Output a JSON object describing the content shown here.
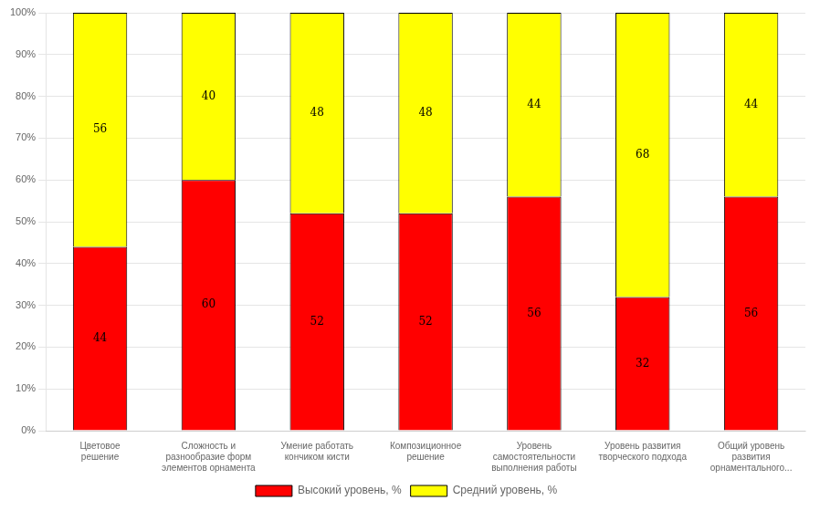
{
  "chart_data": {
    "type": "bar",
    "stacked": true,
    "categories": [
      "Цветовое\nрешение",
      "Сложность и\nразнообразие форм\nэлементов орнамента",
      "Умение работать\nкончиком кисти",
      "Композиционное\nрешение",
      "Уровень\nсамостоятельности\nвыполнения работы",
      "Уровень развития\nтворческого подхода",
      "Общий уровень\nразвития\nорнаментального..."
    ],
    "series": [
      {
        "name": "Высокий уровень, %",
        "color": "#FF0000",
        "values": [
          44,
          60,
          52,
          52,
          56,
          32,
          56
        ]
      },
      {
        "name": "Средний уровень, %",
        "color": "#FFFF00",
        "values": [
          56,
          40,
          48,
          48,
          44,
          68,
          44
        ]
      }
    ],
    "ylim": [
      0,
      100
    ],
    "yticks": [
      {
        "value": 0,
        "label": "0%"
      },
      {
        "value": 10,
        "label": "10%"
      },
      {
        "value": 20,
        "label": "20%"
      },
      {
        "value": 30,
        "label": "30%"
      },
      {
        "value": 40,
        "label": "40%"
      },
      {
        "value": 50,
        "label": "50%"
      },
      {
        "value": 60,
        "label": "60%"
      },
      {
        "value": 70,
        "label": "70%"
      },
      {
        "value": 80,
        "label": "80%"
      },
      {
        "value": 90,
        "label": "90%"
      },
      {
        "value": 100,
        "label": "100%"
      }
    ],
    "grid": true,
    "legend": "bottom",
    "data_labels": true
  }
}
